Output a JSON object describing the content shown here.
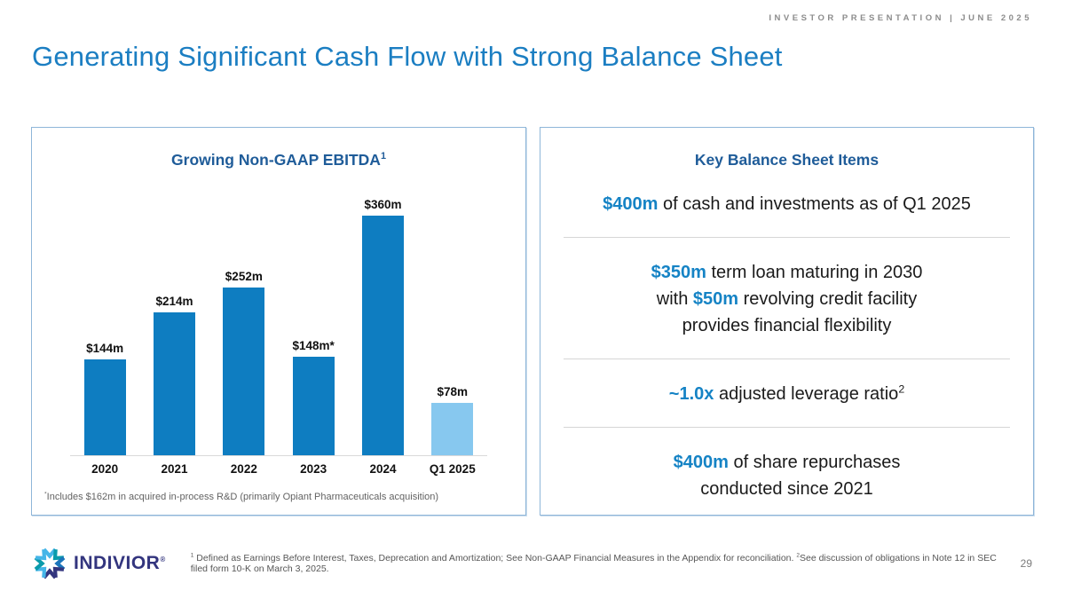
{
  "header": {
    "right_label": "INVESTOR PRESENTATION | JUNE 2025"
  },
  "title": "Generating Significant Cash Flow with Strong Balance Sheet",
  "colors": {
    "title_blue": "#1b7ec2",
    "heading_dark_blue": "#1f5c99",
    "accent_blue": "#1583c5",
    "bar_blue": "#0e7dc1",
    "bar_light_blue": "#87c8ef",
    "panel_border": "#8fb6d9"
  },
  "chart_panel": {
    "title": "Growing Non-GAAP EBITDA",
    "title_sup": "1",
    "footnote_segments": [
      {
        "t": "*",
        "sup": true
      },
      {
        "t": "Includes $162m in acquired in-process R&D (primarily Opiant Pharmaceuticals acquisition)"
      }
    ]
  },
  "chart_data": {
    "type": "bar",
    "title": "Growing Non-GAAP EBITDA¹",
    "categories": [
      "2020",
      "2021",
      "2022",
      "2023",
      "2024",
      "Q1 2025"
    ],
    "values": [
      144,
      214,
      252,
      148,
      360,
      78
    ],
    "labels": [
      "$144m",
      "$214m",
      "$252m",
      "$148m*",
      "$360m",
      "$78m"
    ],
    "bar_colors": [
      "#0e7dc1",
      "#0e7dc1",
      "#0e7dc1",
      "#0e7dc1",
      "#0e7dc1",
      "#87c8ef"
    ],
    "unit": "$m",
    "xlabel": "",
    "ylabel": "",
    "ylim": [
      0,
      380
    ],
    "grid": false,
    "legend": false
  },
  "balance_panel": {
    "title": "Key Balance Sheet Items",
    "items": [
      {
        "lines": [
          [
            {
              "t": "$400m",
              "hl": true
            },
            {
              "t": " of cash and investments as of Q1 2025"
            }
          ]
        ]
      },
      {
        "lines": [
          [
            {
              "t": "$350m",
              "hl": true
            },
            {
              "t": " term loan maturing in 2030"
            }
          ],
          [
            {
              "t": "with "
            },
            {
              "t": "$50m",
              "hl": true
            },
            {
              "t": " revolving credit facility"
            }
          ],
          [
            {
              "t": "provides financial flexibility"
            }
          ]
        ]
      },
      {
        "lines": [
          [
            {
              "t": "~1.0x",
              "hl": true
            },
            {
              "t": " adjusted leverage ratio"
            },
            {
              "t": "2",
              "sup": true
            }
          ]
        ]
      },
      {
        "lines": [
          [
            {
              "t": "$400m",
              "hl": true
            },
            {
              "t": " of share repurchases"
            }
          ],
          [
            {
              "t": "conducted since 2021"
            }
          ]
        ]
      }
    ]
  },
  "footer": {
    "logo_text": "INDIVIOR",
    "logo_reg": "®",
    "footnote_segments": [
      {
        "t": "1",
        "sup": true
      },
      {
        "t": " Defined as Earnings Before Interest, Taxes, Deprecation and Amortization; See Non-GAAP Financial Measures in the Appendix for reconciliation. "
      },
      {
        "t": "2",
        "sup": true
      },
      {
        "t": "See discussion of obligations in Note 12 in SEC filed form 10-K on March 3, 2025."
      }
    ],
    "page_number": "29"
  }
}
